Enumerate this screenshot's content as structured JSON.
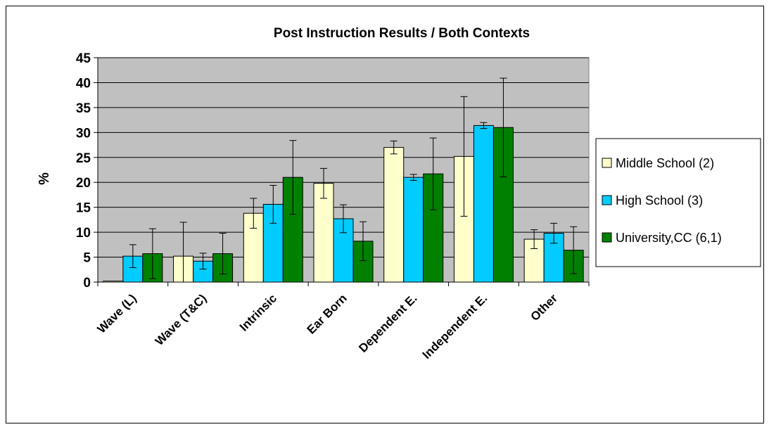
{
  "chart_data": {
    "type": "bar",
    "title": "Post Instruction Results / Both Contexts",
    "ylabel": "%",
    "xlabel": "",
    "ylim": [
      0,
      45
    ],
    "yticks": [
      0,
      5,
      10,
      15,
      20,
      25,
      30,
      35,
      40,
      45
    ],
    "grid": true,
    "legend_position": "right",
    "categories": [
      "Wave (L)",
      "Wave (T&C)",
      "Intrinsic",
      "Ear Born",
      "Dependent E.",
      "Independent E.",
      "Other"
    ],
    "series": [
      {
        "name": "Middle School (2)",
        "color": "#ffffcc",
        "values": [
          0.2,
          5.2,
          13.8,
          19.8,
          27.0,
          25.2,
          8.6
        ],
        "error": [
          0.0,
          6.8,
          3.0,
          3.0,
          1.3,
          12.0,
          1.9
        ]
      },
      {
        "name": "High School (3)",
        "color": "#00ccff",
        "values": [
          5.2,
          4.2,
          15.6,
          12.7,
          21.0,
          31.4,
          9.8
        ],
        "error": [
          2.3,
          1.6,
          3.8,
          2.8,
          0.6,
          0.6,
          2.0
        ]
      },
      {
        "name": "University,CC (6,1)",
        "color": "#008000",
        "values": [
          5.7,
          5.7,
          21.0,
          8.2,
          21.7,
          31.0,
          6.4
        ],
        "error": [
          5.0,
          4.1,
          7.4,
          3.9,
          7.2,
          9.9,
          4.7
        ]
      }
    ],
    "colors": {
      "plot_background": "#c0c0c0",
      "border": "#000000"
    }
  }
}
